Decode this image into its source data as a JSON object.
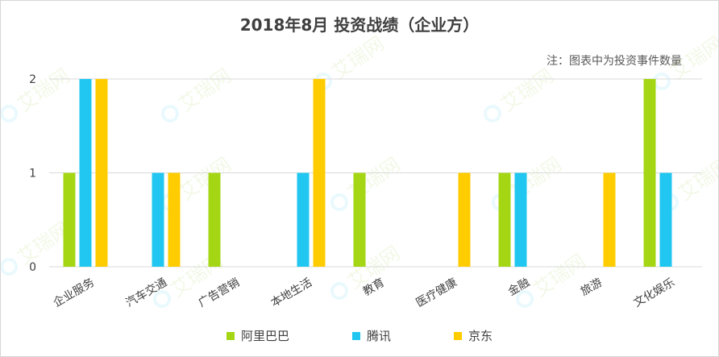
{
  "title": "2018年8月 投资战绩（企业方）",
  "note": "注：图表中为投资事件数量",
  "watermark": "艾瑞网",
  "chart_data": {
    "type": "bar",
    "categories": [
      "企业服务",
      "汽车交通",
      "广告营销",
      "本地生活",
      "教育",
      "医疗健康",
      "金融",
      "旅游",
      "文化娱乐"
    ],
    "series": [
      {
        "name": "阿里巴巴",
        "color": "#a5d614",
        "values": [
          1,
          0,
          1,
          0,
          1,
          0,
          1,
          0,
          2
        ]
      },
      {
        "name": "腾讯",
        "color": "#21c7f0",
        "values": [
          2,
          1,
          0,
          1,
          0,
          0,
          1,
          0,
          1
        ]
      },
      {
        "name": "京东",
        "color": "#ffcc00",
        "values": [
          2,
          1,
          0,
          2,
          0,
          1,
          0,
          1,
          0
        ]
      }
    ],
    "yticks": [
      0,
      1,
      2
    ],
    "ylim": [
      0,
      2
    ],
    "grid": true,
    "legend_position": "bottom"
  }
}
